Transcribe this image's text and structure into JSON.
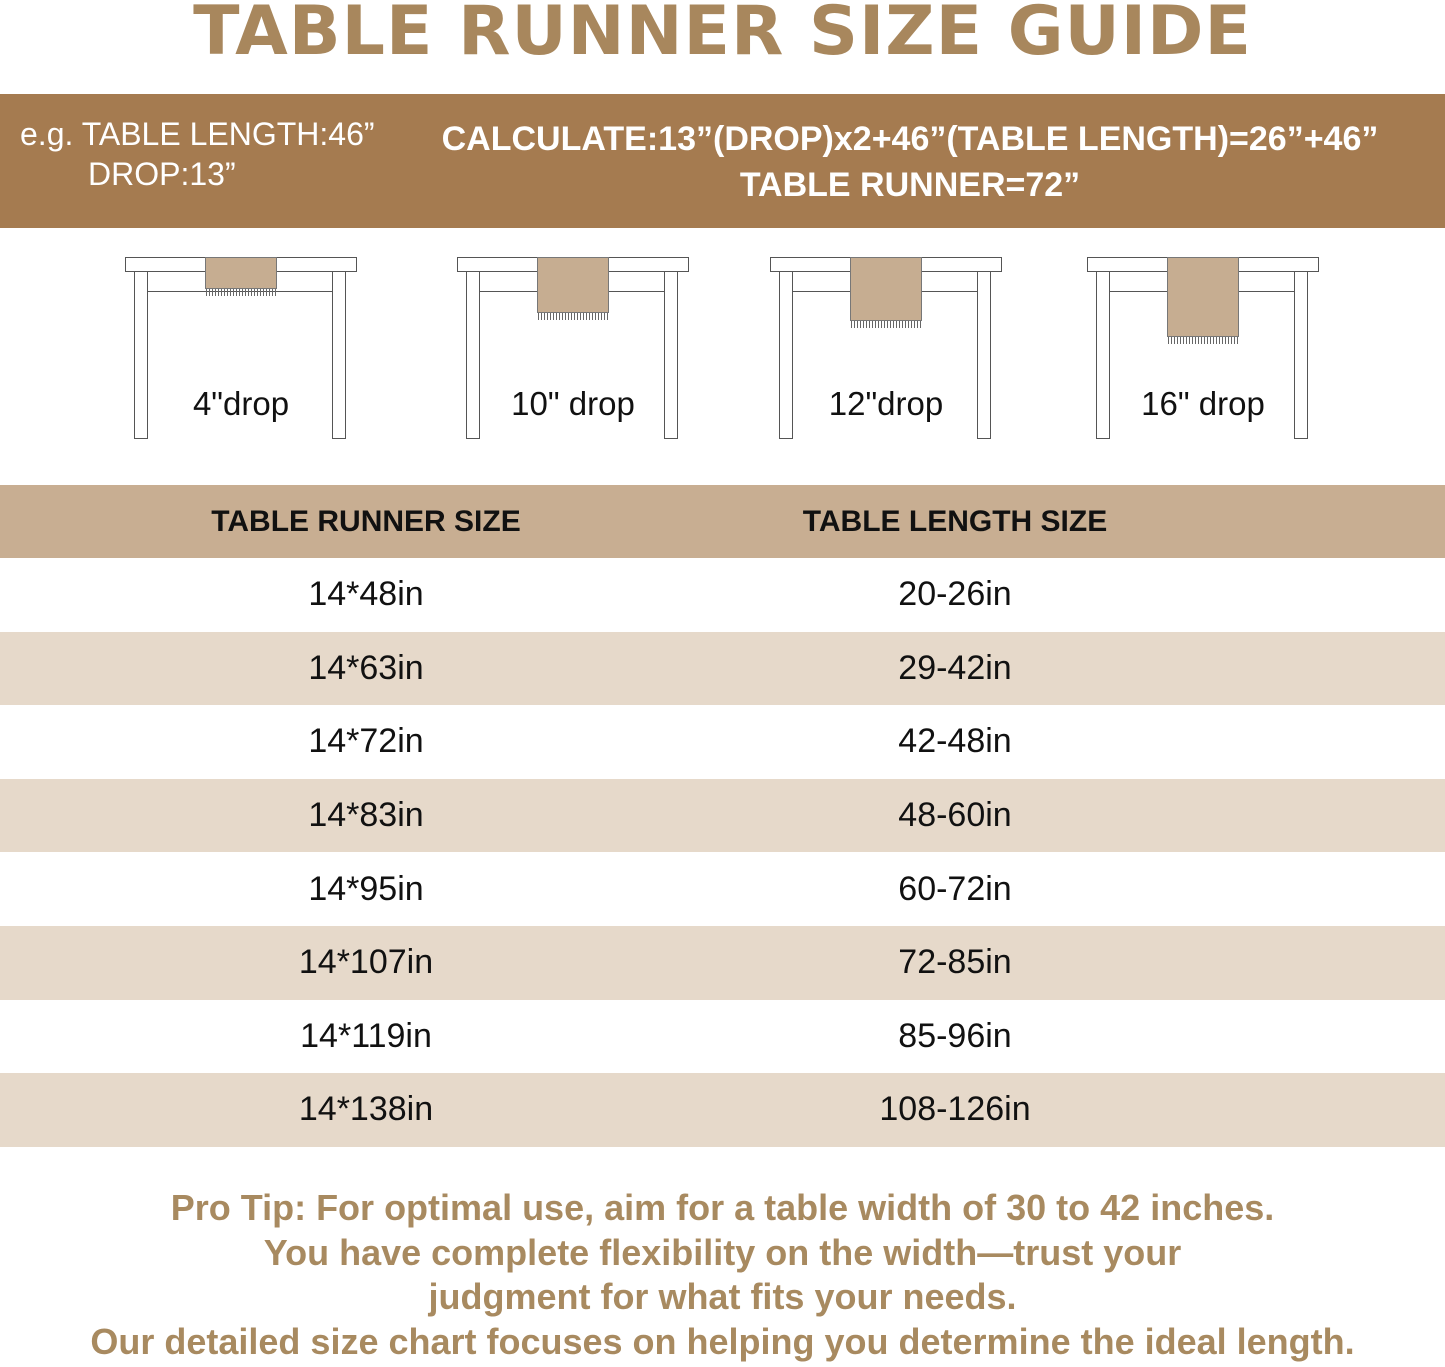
{
  "title": "TABLE RUNNER SIZE GUIDE",
  "colors": {
    "band": "#a57b50",
    "header_row": "#c8ae92",
    "stripe": "#e6d9ca",
    "title": "#a88a60",
    "runner": "#c6ad91"
  },
  "example": {
    "line1": "e.g. TABLE LENGTH:46”",
    "line2": "DROP:13”",
    "calc_line1": "CALCULATE:13”(DROP)x2+46”(TABLE LENGTH)=26”+46”",
    "calc_line2": "TABLE RUNNER=72”"
  },
  "drops": [
    {
      "label": "4\"drop",
      "drop_in": 4
    },
    {
      "label": "10\" drop",
      "drop_in": 10
    },
    {
      "label": "12\"drop",
      "drop_in": 12
    },
    {
      "label": "16\" drop",
      "drop_in": 16
    }
  ],
  "size_table": {
    "headers": [
      "TABLE RUNNER SIZE",
      "TABLE LENGTH SIZE"
    ],
    "rows": [
      [
        "14*48in",
        "20-26in"
      ],
      [
        "14*63in",
        "29-42in"
      ],
      [
        "14*72in",
        "42-48in"
      ],
      [
        "14*83in",
        "48-60in"
      ],
      [
        "14*95in",
        "60-72in"
      ],
      [
        "14*107in",
        "72-85in"
      ],
      [
        "14*119in",
        "85-96in"
      ],
      [
        "14*138in",
        "108-126in"
      ]
    ]
  },
  "pro_tip": [
    "Pro Tip: For optimal use, aim for a table width of 30 to 42 inches.",
    "You have complete flexibility on the width—trust your",
    "judgment for what fits your needs.",
    "Our detailed size chart focuses on helping you determine the ideal length."
  ]
}
